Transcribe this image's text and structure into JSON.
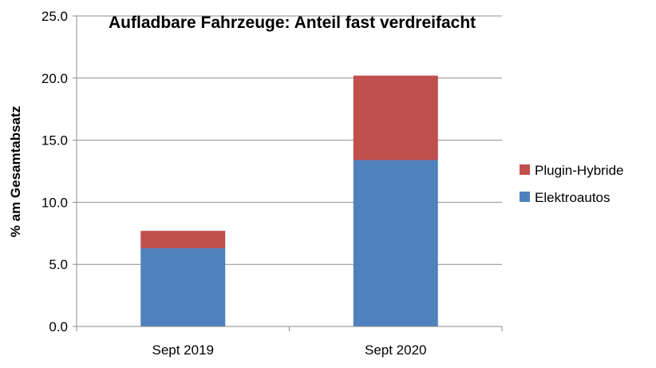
{
  "chart_data": {
    "type": "bar",
    "stacked": true,
    "title": "Aufladbare Fahrzeuge: Anteil fast verdreifacht",
    "xlabel": "",
    "ylabel": "% am Gesamtabsatz",
    "categories": [
      "Sept 2019",
      "Sept 2020"
    ],
    "series": [
      {
        "name": "Elektroautos",
        "values": [
          6.3,
          13.4
        ],
        "color": "#4F81BD"
      },
      {
        "name": "Plugin-Hybride",
        "values": [
          1.4,
          6.8
        ],
        "color": "#C0504D"
      }
    ],
    "ylim": [
      0,
      25
    ],
    "yticks": [
      "0.0",
      "5.0",
      "10.0",
      "15.0",
      "20.0",
      "25.0"
    ],
    "grid": true,
    "legend_position": "right"
  }
}
